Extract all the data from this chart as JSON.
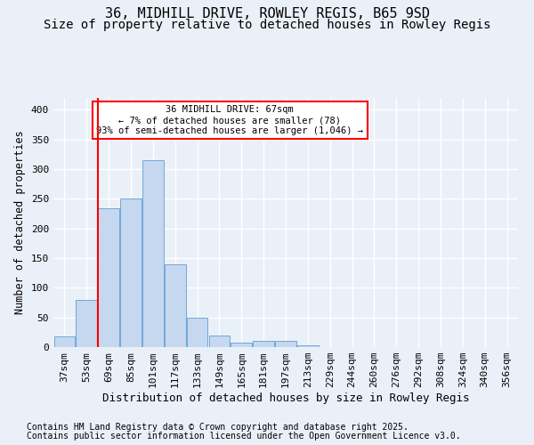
{
  "title1": "36, MIDHILL DRIVE, ROWLEY REGIS, B65 9SD",
  "title2": "Size of property relative to detached houses in Rowley Regis",
  "xlabel": "Distribution of detached houses by size in Rowley Regis",
  "ylabel": "Number of detached properties",
  "bar_color": "#c5d8f0",
  "bar_edge_color": "#6fa8d8",
  "bins": [
    "37sqm",
    "53sqm",
    "69sqm",
    "85sqm",
    "101sqm",
    "117sqm",
    "133sqm",
    "149sqm",
    "165sqm",
    "181sqm",
    "197sqm",
    "213sqm",
    "229sqm",
    "244sqm",
    "260sqm",
    "276sqm",
    "292sqm",
    "308sqm",
    "324sqm",
    "340sqm",
    "356sqm"
  ],
  "values": [
    18,
    80,
    234,
    250,
    315,
    140,
    50,
    20,
    8,
    10,
    10,
    3,
    0,
    0,
    0,
    0,
    0,
    0,
    0,
    0,
    0
  ],
  "vline_x": 2,
  "vline_label": "36 MIDHILL DRIVE: 67sqm",
  "annotation_line1": "← 7% of detached houses are smaller (78)",
  "annotation_line2": "93% of semi-detached houses are larger (1,046) →",
  "ylim": [
    0,
    420
  ],
  "yticks": [
    0,
    50,
    100,
    150,
    200,
    250,
    300,
    350,
    400
  ],
  "footnote1": "Contains HM Land Registry data © Crown copyright and database right 2025.",
  "footnote2": "Contains public sector information licensed under the Open Government Licence v3.0.",
  "bg_color": "#eaf0f8",
  "plot_bg_color": "#eaf0f8",
  "grid_color": "#ffffff",
  "title1_fontsize": 11,
  "title2_fontsize": 10,
  "axis_fontsize": 8,
  "footnote_fontsize": 7
}
